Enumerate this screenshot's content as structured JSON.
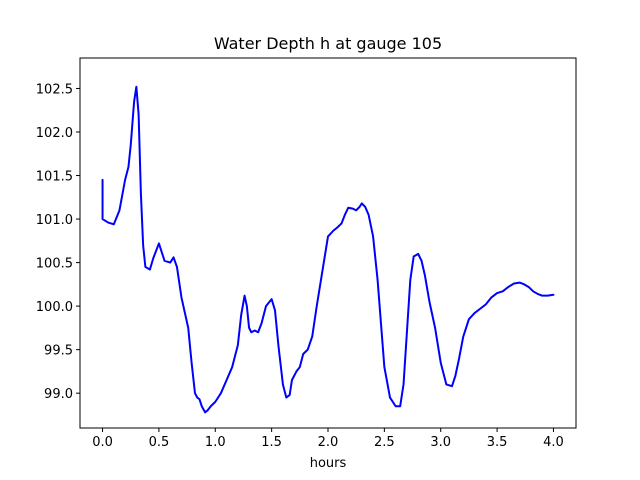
{
  "chart_data": {
    "type": "line",
    "title": "Water Depth h at gauge 105",
    "xlabel": "hours",
    "ylabel": "",
    "xlim": [
      -0.2,
      4.2
    ],
    "ylim": [
      98.6,
      102.85
    ],
    "grid": false,
    "legend": "none",
    "colors": {
      "line": "#0000ff",
      "axes": "#000000",
      "background": "#ffffff"
    },
    "x_ticks": [
      0.0,
      0.5,
      1.0,
      1.5,
      2.0,
      2.5,
      3.0,
      3.5,
      4.0
    ],
    "x_tick_labels": [
      "0.0",
      "0.5",
      "1.0",
      "1.5",
      "2.0",
      "2.5",
      "3.0",
      "3.5",
      "4.0"
    ],
    "y_ticks": [
      99.0,
      99.5,
      100.0,
      100.5,
      101.0,
      101.5,
      102.0,
      102.5
    ],
    "y_tick_labels": [
      "99.0",
      "99.5",
      "100.0",
      "100.5",
      "101.0",
      "101.5",
      "102.0",
      "102.5"
    ],
    "series": [
      {
        "x": [
          0.0,
          0.0,
          0.05,
          0.1,
          0.15,
          0.2,
          0.23,
          0.25,
          0.28,
          0.3,
          0.32,
          0.34,
          0.36,
          0.38,
          0.42,
          0.45,
          0.5,
          0.55,
          0.6,
          0.63,
          0.66,
          0.7,
          0.76,
          0.79,
          0.82,
          0.84,
          0.86,
          0.88,
          0.91,
          0.93,
          0.96,
          1.0,
          1.05,
          1.1,
          1.15,
          1.2,
          1.23,
          1.26,
          1.28,
          1.3,
          1.32,
          1.35,
          1.38,
          1.41,
          1.45,
          1.5,
          1.53,
          1.56,
          1.6,
          1.63,
          1.66,
          1.68,
          1.72,
          1.75,
          1.78,
          1.82,
          1.86,
          1.9,
          1.95,
          2.0,
          2.05,
          2.08,
          2.12,
          2.15,
          2.18,
          2.22,
          2.25,
          2.28,
          2.3,
          2.33,
          2.36,
          2.4,
          2.44,
          2.47,
          2.5,
          2.55,
          2.6,
          2.64,
          2.67,
          2.7,
          2.73,
          2.76,
          2.8,
          2.83,
          2.86,
          2.9,
          2.95,
          3.0,
          3.05,
          3.1,
          3.13,
          3.16,
          3.2,
          3.25,
          3.3,
          3.35,
          3.4,
          3.45,
          3.5,
          3.55,
          3.6,
          3.65,
          3.7,
          3.74,
          3.78,
          3.82,
          3.86,
          3.9,
          3.95,
          4.0
        ],
        "y": [
          101.45,
          101.0,
          100.96,
          100.94,
          101.1,
          101.45,
          101.6,
          101.85,
          102.35,
          102.52,
          102.2,
          101.3,
          100.7,
          100.45,
          100.42,
          100.55,
          100.72,
          100.52,
          100.5,
          100.56,
          100.45,
          100.1,
          99.75,
          99.35,
          99.0,
          98.95,
          98.93,
          98.85,
          98.78,
          98.8,
          98.85,
          98.9,
          99.0,
          99.15,
          99.3,
          99.55,
          99.9,
          100.12,
          100.0,
          99.75,
          99.7,
          99.72,
          99.7,
          99.8,
          100.0,
          100.08,
          99.95,
          99.55,
          99.1,
          98.95,
          98.98,
          99.15,
          99.25,
          99.3,
          99.45,
          99.5,
          99.65,
          100.0,
          100.4,
          100.8,
          100.87,
          100.9,
          100.95,
          101.05,
          101.13,
          101.12,
          101.1,
          101.14,
          101.18,
          101.14,
          101.05,
          100.8,
          100.3,
          99.8,
          99.3,
          98.95,
          98.85,
          98.85,
          99.1,
          99.7,
          100.3,
          100.57,
          100.6,
          100.52,
          100.35,
          100.05,
          99.75,
          99.35,
          99.1,
          99.08,
          99.2,
          99.38,
          99.65,
          99.85,
          99.92,
          99.97,
          100.02,
          100.1,
          100.15,
          100.17,
          100.22,
          100.26,
          100.27,
          100.25,
          100.22,
          100.17,
          100.14,
          100.12,
          100.12,
          100.13
        ]
      }
    ]
  }
}
